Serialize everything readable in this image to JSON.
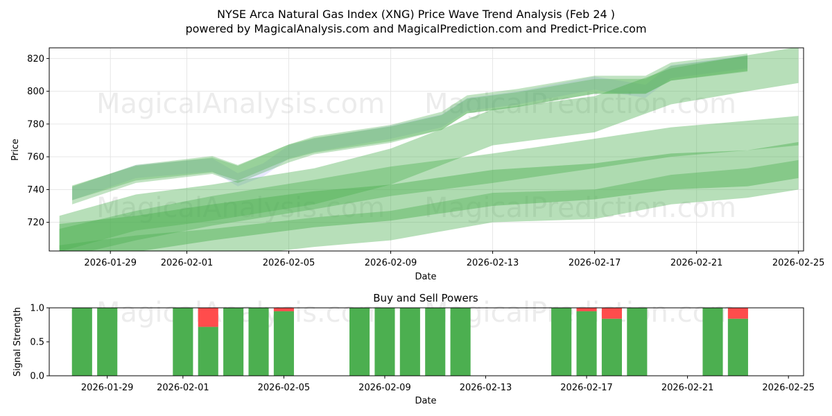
{
  "title_line1": "NYSE Arca Natural Gas Index (XNG) Price Wave Trend Analysis (Feb 24 )",
  "title_line2": "powered by MagicalAnalysis.com and MagicalPrediction.com and Predict-Price.com",
  "watermarks": [
    "MagicalAnalysis.com",
    "MagicalPrediction.com"
  ],
  "colors": {
    "band_green": "#4caf50",
    "band_blue": "#8c8cff",
    "buy": "#4caf50",
    "sell": "#ff4c4c",
    "grid": "#e6e6e6"
  },
  "chart_data": [
    {
      "type": "area",
      "title": "",
      "xlabel": "Date",
      "ylabel": "Price",
      "x_ticks": [
        "2026-01-29",
        "2026-02-01",
        "2026-02-05",
        "2026-02-09",
        "2026-02-13",
        "2026-02-17",
        "2026-02-21",
        "2026-02-25"
      ],
      "y_ticks": [
        720,
        740,
        760,
        780,
        800,
        820
      ],
      "ylim": [
        702.5,
        826.5
      ],
      "xlim_days": [
        -2.4,
        27.2
      ],
      "date_origin": "2026-01-29",
      "bands": [
        {
          "name": "price-band-blue",
          "color": "blue",
          "opacity": 0.2,
          "points": [
            [
              -1.5,
              737.5
            ],
            [
              1,
              751
            ],
            [
              4,
              755
            ],
            [
              5,
              746
            ],
            [
              6,
              752
            ],
            [
              7,
              763
            ],
            [
              8,
              767
            ],
            [
              11,
              775
            ],
            [
              13,
              782
            ],
            [
              14,
              792
            ],
            [
              16,
              796
            ],
            [
              19,
              805
            ],
            [
              21,
              800
            ],
            [
              22,
              812
            ],
            [
              25,
              818
            ]
          ],
          "width": 8
        },
        {
          "name": "price-band-green-1",
          "color": "green",
          "opacity": 0.35,
          "points": [
            [
              -1.5,
              736.5
            ],
            [
              1,
              749.5
            ],
            [
              4,
              755
            ],
            [
              5,
              749.5
            ],
            [
              7,
              762
            ],
            [
              8,
              767
            ],
            [
              11,
              774
            ],
            [
              13,
              782
            ],
            [
              14,
              792
            ],
            [
              16,
              796
            ],
            [
              19,
              804
            ],
            [
              21,
              804
            ],
            [
              22,
              812
            ],
            [
              25,
              817.5
            ]
          ],
          "width": 11
        },
        {
          "name": "price-band-green-2",
          "color": "green",
          "opacity": 0.35,
          "points": [
            [
              -1.5,
              738
            ],
            [
              1,
              750
            ],
            [
              4,
              755
            ],
            [
              5,
              750
            ],
            [
              7,
              763
            ],
            [
              8,
              767
            ],
            [
              11,
              774
            ],
            [
              13,
              781
            ],
            [
              14,
              791
            ],
            [
              16,
              795
            ],
            [
              19,
              803
            ],
            [
              21,
              803
            ],
            [
              22,
              811
            ],
            [
              25,
              817
            ]
          ],
          "width": 9
        },
        {
          "name": "trend-band-green-1",
          "color": "green",
          "opacity": 0.4,
          "points": [
            [
              -2,
              713
            ],
            [
              1,
              726
            ],
            [
              4,
              732
            ],
            [
              8,
              742
            ],
            [
              11,
              754
            ],
            [
              13,
              766
            ],
            [
              15,
              778
            ],
            [
              19,
              786
            ],
            [
              22,
              803
            ],
            [
              25,
              811
            ],
            [
              27,
              816
            ]
          ],
          "width": 22
        },
        {
          "name": "trend-band-green-2",
          "color": "green",
          "opacity": 0.4,
          "points": [
            [
              -2,
              707
            ],
            [
              1,
              718
            ],
            [
              4,
              727
            ],
            [
              8,
              737
            ],
            [
              11,
              745
            ],
            [
              15,
              753
            ],
            [
              19,
              762
            ],
            [
              22,
              769
            ],
            [
              25,
              773
            ],
            [
              27,
              776
            ]
          ],
          "width": 18
        },
        {
          "name": "trend-band-green-3",
          "color": "green",
          "opacity": 0.45,
          "points": [
            [
              -2,
              708
            ],
            [
              1,
              713
            ],
            [
              4,
              720
            ],
            [
              8,
              728
            ],
            [
              11,
              732
            ],
            [
              15,
              741
            ],
            [
              19,
              745
            ],
            [
              22,
              751
            ],
            [
              25,
              753
            ],
            [
              27,
              758
            ]
          ],
          "width": 22
        },
        {
          "name": "trend-band-green-4",
          "color": "green",
          "opacity": 0.4,
          "points": [
            [
              -2,
              697
            ],
            [
              1,
              703
            ],
            [
              4,
              707
            ],
            [
              8,
              714
            ],
            [
              11,
              718
            ],
            [
              15,
              729
            ],
            [
              19,
              731
            ],
            [
              22,
              740
            ],
            [
              25,
              744
            ],
            [
              27,
              749
            ]
          ],
          "width": 18
        }
      ]
    },
    {
      "type": "bar",
      "title": "Buy and Sell Powers",
      "xlabel": "Date",
      "ylabel": "Signal Strength",
      "x_ticks": [
        "2026-01-29",
        "2026-02-01",
        "2026-02-05",
        "2026-02-09",
        "2026-02-13",
        "2026-02-17",
        "2026-02-21",
        "2026-02-25"
      ],
      "y_ticks": [
        "0.0",
        "0.5",
        "1.0"
      ],
      "ylim": [
        0,
        1
      ],
      "xlim_days": [
        -2.3,
        27.6
      ],
      "date_origin": "2026-01-29",
      "bars": [
        {
          "day": -1,
          "buy": 1.0,
          "sell": 0.0
        },
        {
          "day": 0,
          "buy": 1.0,
          "sell": 0.0
        },
        {
          "day": 3,
          "buy": 1.0,
          "sell": 0.0
        },
        {
          "day": 4,
          "buy": 0.72,
          "sell": 0.28
        },
        {
          "day": 5,
          "buy": 1.0,
          "sell": 0.0
        },
        {
          "day": 6,
          "buy": 1.0,
          "sell": 0.0
        },
        {
          "day": 7,
          "buy": 0.95,
          "sell": 0.05
        },
        {
          "day": 10,
          "buy": 1.0,
          "sell": 0.0
        },
        {
          "day": 11,
          "buy": 1.0,
          "sell": 0.0
        },
        {
          "day": 12,
          "buy": 1.0,
          "sell": 0.0
        },
        {
          "day": 13,
          "buy": 1.0,
          "sell": 0.0
        },
        {
          "day": 14,
          "buy": 1.0,
          "sell": 0.0
        },
        {
          "day": 18,
          "buy": 1.0,
          "sell": 0.0
        },
        {
          "day": 19,
          "buy": 0.95,
          "sell": 0.05
        },
        {
          "day": 20,
          "buy": 0.84,
          "sell": 0.16
        },
        {
          "day": 21,
          "buy": 1.0,
          "sell": 0.0
        },
        {
          "day": 24,
          "buy": 1.0,
          "sell": 0.0
        },
        {
          "day": 25,
          "buy": 0.84,
          "sell": 0.16
        }
      ]
    }
  ]
}
